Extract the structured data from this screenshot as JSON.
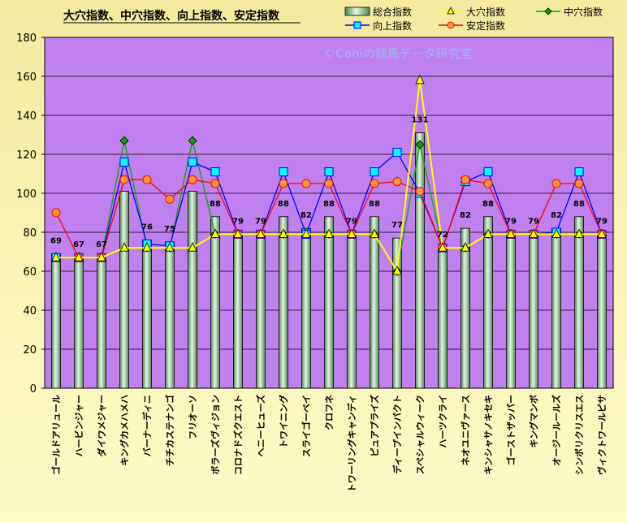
{
  "chart_data": {
    "type": "bar",
    "title": "大穴指数、中穴指数、向上指数、安定指数",
    "watermark": "©Caniの競馬データ研究室",
    "ylim": [
      0,
      180
    ],
    "yticks": [
      "0",
      "20",
      "40",
      "60",
      "80",
      "100",
      "120",
      "140",
      "160",
      "180"
    ],
    "grid": true,
    "legend_position": "top-right",
    "categories": [
      "ゴールドアリュール",
      "ハービンジャー",
      "ダイワメジャー",
      "キングカメハメハ",
      "バーナーディニ",
      "チチカステナンゴ",
      "フリオーソ",
      "ボラーズヴィジョン",
      "コロナドズクエスト",
      "ヘニーヒューズ",
      "トワイニング",
      "スライゴーベイ",
      "クロフネ",
      "トワーリングキャンディ",
      "ピュアプライズ",
      "ディープインパクト",
      "スペシャルウィーク",
      "ハーツクライ",
      "ネオユニヴァース",
      "キンシャサノキセキ",
      "ゴーストザッパー",
      "キングマンボ",
      "オージールールズ",
      "シンボリクリスエス",
      "ヴィクトワールピサ"
    ],
    "series": [
      {
        "name": "総合指数",
        "kind": "bar",
        "color": "#cfe9cf",
        "values": [
          69,
          67,
          67,
          101,
          76,
          75,
          101,
          88,
          79,
          79,
          88,
          82,
          88,
          79,
          88,
          77,
          131,
          72,
          82,
          88,
          79,
          79,
          82,
          88,
          79
        ],
        "labels": [
          "69",
          "67",
          "67",
          "",
          "76",
          "75",
          "",
          "88",
          "79",
          "79",
          "88",
          "82",
          "88",
          "79",
          "88",
          "77",
          "131",
          "72",
          "82",
          "88",
          "79",
          "79",
          "82",
          "88",
          "79"
        ]
      },
      {
        "name": "大穴指数",
        "kind": "line",
        "marker": "triangle",
        "color": "#ffff00",
        "values": [
          67,
          67,
          67,
          72,
          72,
          72,
          72,
          79,
          79,
          79,
          79,
          79,
          79,
          79,
          79,
          60,
          158,
          72,
          72,
          79,
          79,
          79,
          79,
          79,
          79
        ]
      },
      {
        "name": "中穴指数",
        "kind": "line",
        "marker": "diamond",
        "color": "#00aa00",
        "values": [
          67,
          67,
          67,
          127,
          72,
          72,
          127,
          79,
          79,
          79,
          79,
          79,
          79,
          79,
          79,
          60,
          125,
          72,
          72,
          79,
          79,
          79,
          79,
          79,
          79
        ]
      },
      {
        "name": "向上指数",
        "kind": "line",
        "marker": "square",
        "color": "#0000ff",
        "values": [
          67,
          67,
          67,
          116,
          74,
          73,
          116,
          111,
          79,
          79,
          111,
          79,
          111,
          79,
          111,
          121,
          100,
          72,
          106,
          111,
          79,
          79,
          80,
          111,
          79
        ]
      },
      {
        "name": "安定指数",
        "kind": "line",
        "marker": "circle",
        "color": "#ff0000",
        "values": [
          90,
          67,
          67,
          107,
          107,
          97,
          107,
          105,
          79,
          79,
          105,
          105,
          105,
          79,
          105,
          106,
          101,
          72,
          107,
          105,
          79,
          79,
          105,
          105,
          79
        ]
      }
    ]
  }
}
